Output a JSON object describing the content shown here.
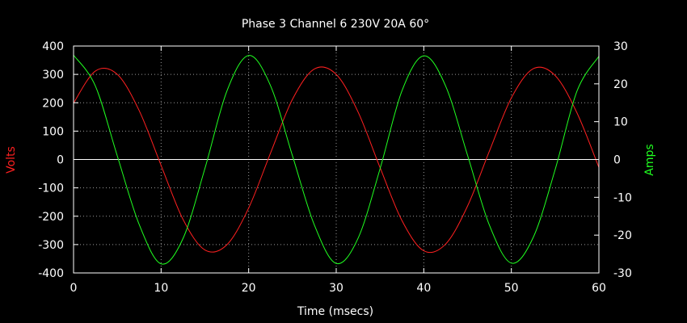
{
  "chart_data": {
    "type": "line",
    "title": "Phase 3 Channel 6  230V 20A 60°",
    "xlabel": "Time (msecs)",
    "ylabel": "Volts",
    "y2label": "Amps",
    "xlim": [
      0,
      60
    ],
    "ylim": [
      -400,
      400
    ],
    "y2lim": [
      -30,
      30
    ],
    "x_ticks": [
      0,
      10,
      20,
      30,
      40,
      50,
      60
    ],
    "y_ticks": [
      -400,
      -300,
      -200,
      -100,
      0,
      100,
      200,
      300,
      400
    ],
    "y2_ticks": [
      -30,
      -20,
      -10,
      0,
      10,
      20,
      30
    ],
    "grid": true,
    "zero_line": true,
    "background": "#000000",
    "axes_color": "#ffffff",
    "x": [
      0,
      2.5,
      5,
      7.5,
      10,
      12.5,
      15,
      17.5,
      20,
      22.5,
      25,
      27.5,
      30,
      32.5,
      35,
      37.5,
      40,
      42.5,
      45,
      47.5,
      50,
      52.5,
      55,
      57.5,
      60
    ],
    "series": [
      {
        "name": "Volts",
        "axis": "y",
        "color": "#ff2020",
        "values": [
          199,
          312,
          300,
          172,
          -21,
          -211,
          -319,
          -301,
          -171,
          23,
          212,
          319,
          300,
          167,
          -28,
          -215,
          -322,
          -298,
          -164,
          30,
          217,
          320,
          296,
          164,
          -28
        ]
      },
      {
        "name": "Amps",
        "axis": "y2",
        "color": "#20ff20",
        "values": [
          27.6,
          19.4,
          0.9,
          -17.2,
          -27.6,
          -20.9,
          -2.4,
          18.0,
          27.5,
          19.5,
          1.0,
          -17.3,
          -27.5,
          -20.8,
          -2.5,
          18.1,
          27.4,
          19.4,
          1.1,
          -17.4,
          -27.4,
          -20.6,
          -2.7,
          18.1,
          27.3
        ]
      }
    ]
  }
}
